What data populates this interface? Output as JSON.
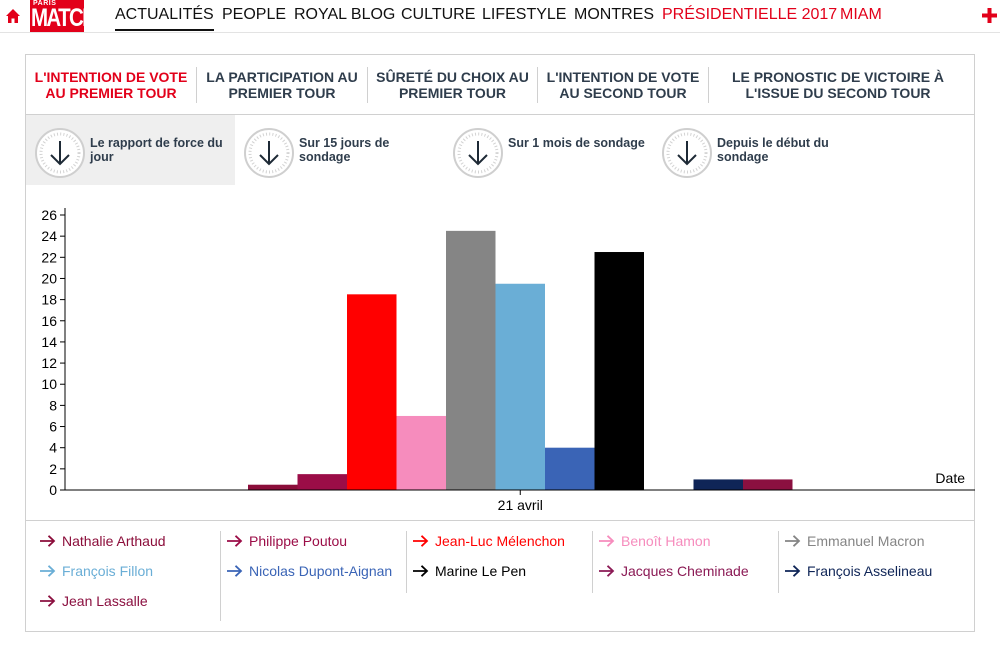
{
  "nav": {
    "logo_small": "PARIS",
    "logo_big": "MATCH",
    "items": [
      "ACTUALITÉS",
      "PEOPLE",
      "ROYAL BLOG",
      "CULTURE",
      "LIFESTYLE",
      "MONTRES",
      "PRÉSIDENTIELLE 2017",
      "MIAM"
    ],
    "active": "ACTUALITÉS"
  },
  "poll_tabs": [
    "L'INTENTION DE VOTE AU PREMIER TOUR",
    "LA PARTICIPATION AU PREMIER TOUR",
    "SÛRETÉ DU CHOIX AU PREMIER TOUR",
    "L'INTENTION DE VOTE AU SECOND TOUR",
    "LE PRONOSTIC DE VICTOIRE À L'ISSUE DU SECOND TOUR"
  ],
  "period_buttons": [
    "Le rapport de force du jour",
    "Sur 15 jours de sondage",
    "Sur 1 mois de sondage",
    "Depuis le début du sondage"
  ],
  "colors": {
    "brand_red": "#e2001a",
    "tab_text": "#2f3d4c",
    "active_period_bg": "#efefef"
  },
  "chart_data": {
    "type": "bar",
    "categories": [
      "21 avril"
    ],
    "xlabel": "Date",
    "ylabel": "",
    "ylim": [
      0,
      26
    ],
    "y_ticks": [
      0,
      2,
      4,
      6,
      8,
      10,
      12,
      14,
      16,
      18,
      20,
      22,
      24,
      26
    ],
    "grid": false,
    "legend_placement": "bottom",
    "series": [
      {
        "name": "Nathalie Arthaud",
        "color": "#8b0d3a",
        "values": [
          0.5
        ]
      },
      {
        "name": "Philippe Poutou",
        "color": "#9b0d47",
        "values": [
          1.5
        ]
      },
      {
        "name": "Jean-Luc Mélenchon",
        "color": "#ff0000",
        "values": [
          18.5
        ]
      },
      {
        "name": "Benoît Hamon",
        "color": "#f68cbd",
        "values": [
          7
        ]
      },
      {
        "name": "Emmanuel Macron",
        "color": "#858585",
        "values": [
          24.5
        ]
      },
      {
        "name": "François Fillon",
        "color": "#6aaed6",
        "values": [
          19.5
        ]
      },
      {
        "name": "Nicolas Dupont-Aignan",
        "color": "#3a64b6",
        "values": [
          4
        ]
      },
      {
        "name": "Marine Le Pen",
        "color": "#000000",
        "values": [
          22.5
        ]
      },
      {
        "name": "Jacques Cheminade",
        "color": "#8b1a55",
        "values": [
          0
        ]
      },
      {
        "name": "François Asselineau",
        "color": "#0f2557",
        "values": [
          1
        ]
      },
      {
        "name": "Jean Lassalle",
        "color": "#8b1040",
        "values": [
          1
        ]
      }
    ]
  }
}
